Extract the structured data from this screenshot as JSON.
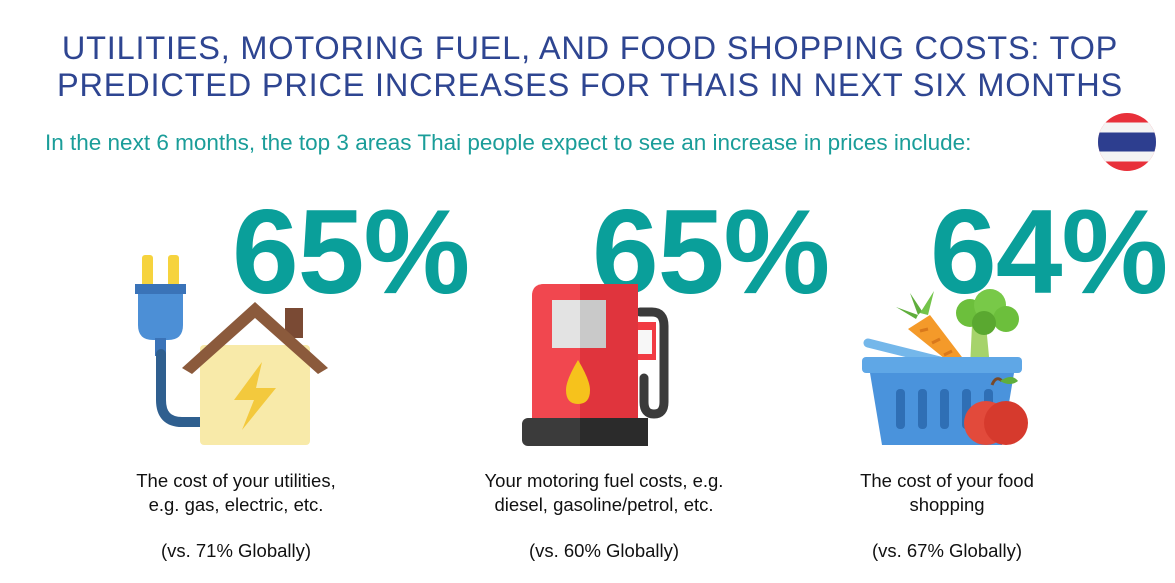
{
  "title": {
    "line1": "UTILITIES, MOTORING FUEL, AND FOOD SHOPPING COSTS: TOP",
    "line2": "PREDICTED PRICE INCREASES FOR THAIS IN NEXT SIX MONTHS"
  },
  "subtitle": "In the next 6 months, the top 3 areas Thai people expect to see an increase in prices include:",
  "flag_icon": "thailand-flag-icon",
  "colors": {
    "title": "#2e4591",
    "accent_teal": "#0a9f9a",
    "subtitle_teal": "#1a9d99"
  },
  "items": [
    {
      "percent": "65%",
      "icon": "plug-house-icon",
      "caption_line1": "The cost of your utilities,",
      "caption_line2": "e.g. gas, electric, etc.",
      "comparison": "(vs. 71% Globally)"
    },
    {
      "percent": "65%",
      "icon": "fuel-pump-icon",
      "caption_line1": "Your motoring fuel costs, e.g.",
      "caption_line2": "diesel, gasoline/petrol, etc.",
      "comparison": "(vs. 60% Globally)"
    },
    {
      "percent": "64%",
      "icon": "grocery-basket-icon",
      "caption_line1": "The cost of your food",
      "caption_line2": "shopping",
      "comparison": "(vs. 67% Globally)"
    }
  ]
}
